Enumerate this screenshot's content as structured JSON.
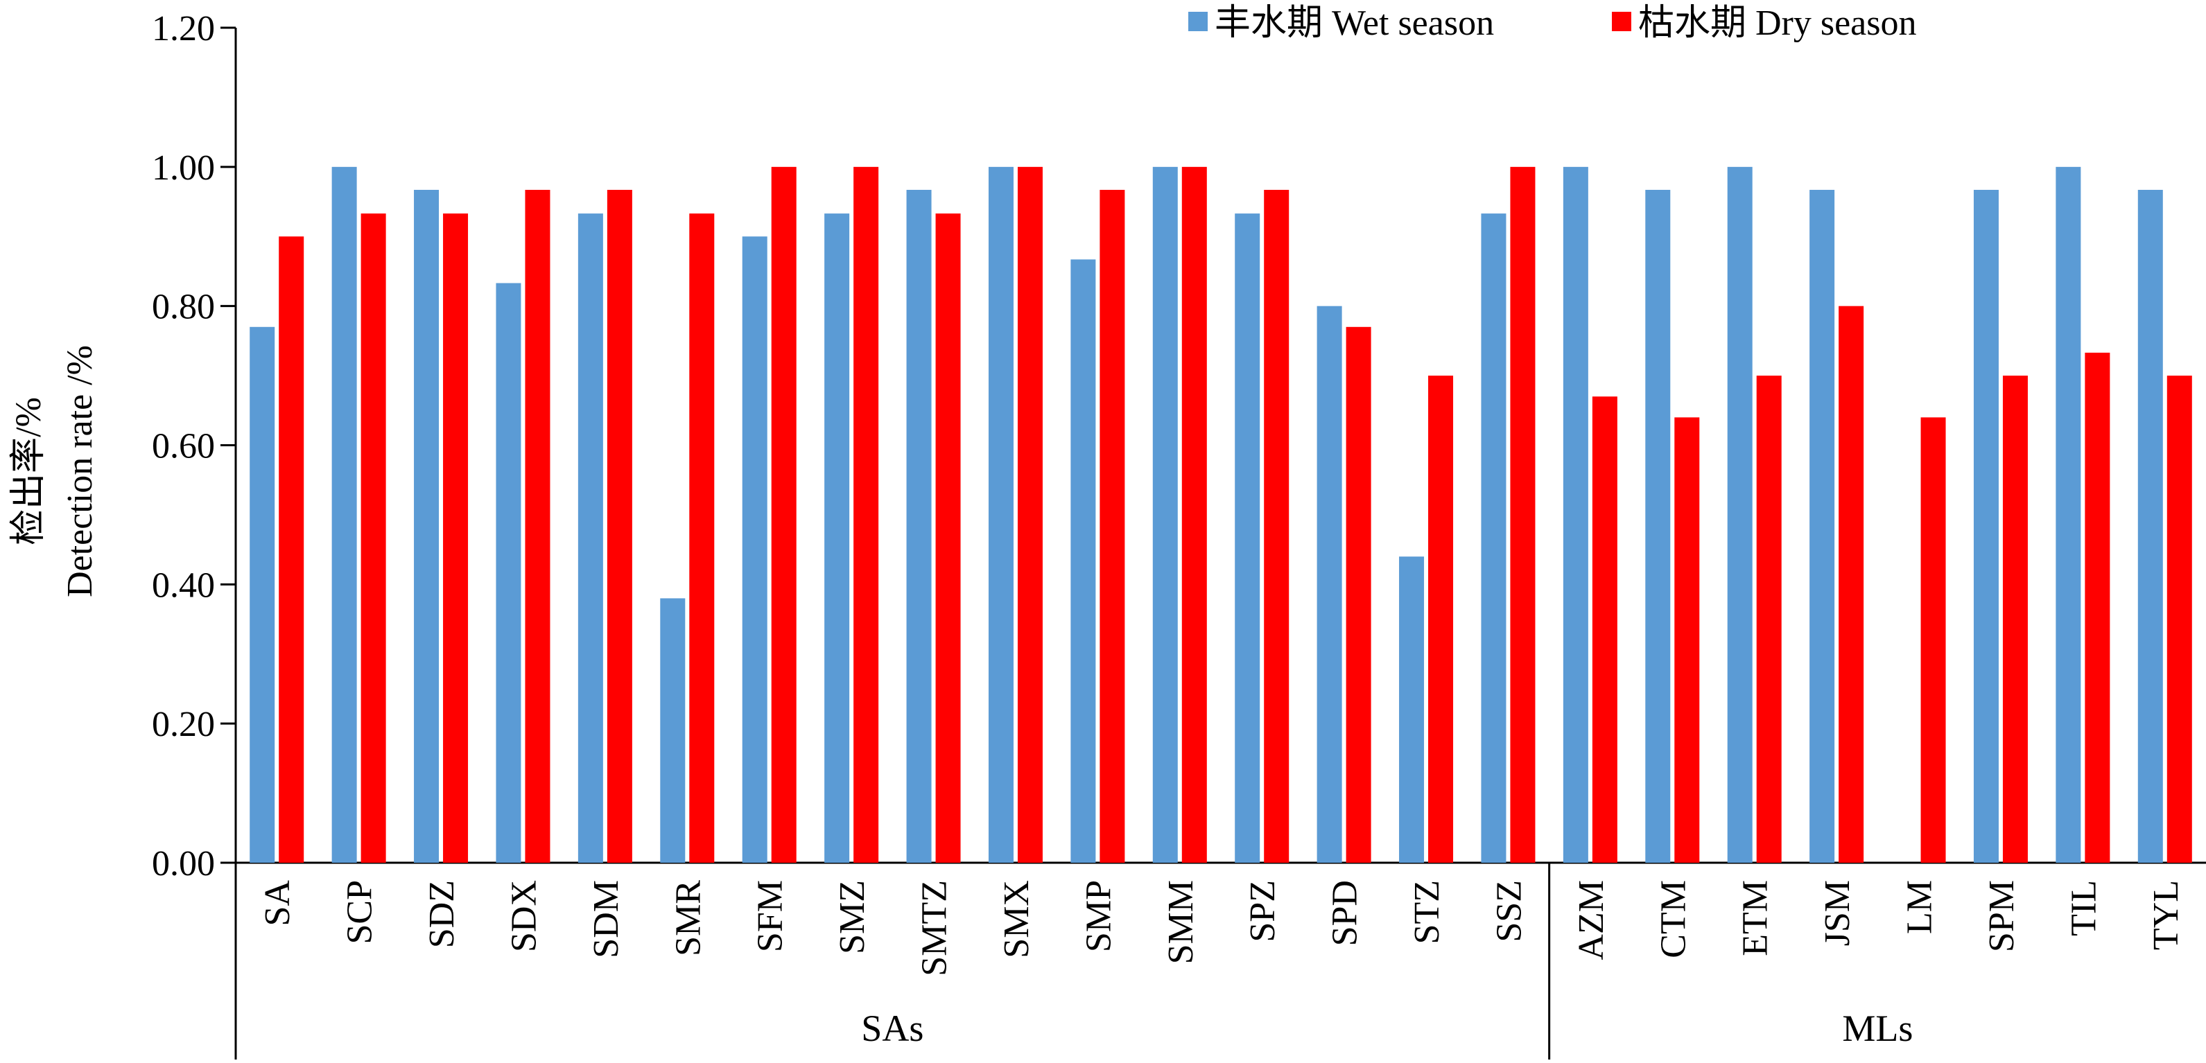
{
  "chart_data": {
    "type": "bar",
    "ylabel_cn": "检出率/%",
    "ylabel_en": "Detection rate /%",
    "ylim": [
      0,
      1.2
    ],
    "yticks": [
      "0.00",
      "0.20",
      "0.40",
      "0.60",
      "0.80",
      "1.00",
      "1.20"
    ],
    "categories": [
      "SA",
      "SCP",
      "SDZ",
      "SDX",
      "SDM",
      "SMR",
      "SFM",
      "SMZ",
      "SMTZ",
      "SMX",
      "SMP",
      "SMM",
      "SPZ",
      "SPD",
      "STZ",
      "SSZ",
      "AZM",
      "CTM",
      "ETM",
      "JSM",
      "LM",
      "SPM",
      "TIL",
      "TYL"
    ],
    "groups": [
      {
        "label": "SAs",
        "start": 0,
        "end": 15
      },
      {
        "label": "MLs",
        "start": 16,
        "end": 23
      }
    ],
    "series": [
      {
        "name": "丰水期 Wet season",
        "color": "#5b9bd5",
        "values": [
          0.77,
          1.0,
          0.967,
          0.833,
          0.933,
          0.38,
          0.9,
          0.933,
          0.967,
          1.0,
          0.867,
          1.0,
          0.933,
          0.8,
          0.44,
          0.933,
          1.0,
          0.967,
          1.0,
          0.967,
          0.0,
          0.967,
          1.0,
          0.967
        ]
      },
      {
        "name": "枯水期 Dry season",
        "color": "#ff0000",
        "values": [
          0.9,
          0.933,
          0.933,
          0.967,
          0.967,
          0.933,
          1.0,
          1.0,
          0.933,
          1.0,
          0.967,
          1.0,
          0.967,
          0.77,
          0.7,
          1.0,
          0.67,
          0.64,
          0.7,
          0.8,
          0.64,
          0.7,
          0.733,
          0.7
        ]
      }
    ],
    "legend_position": "top-right",
    "grid": false
  }
}
